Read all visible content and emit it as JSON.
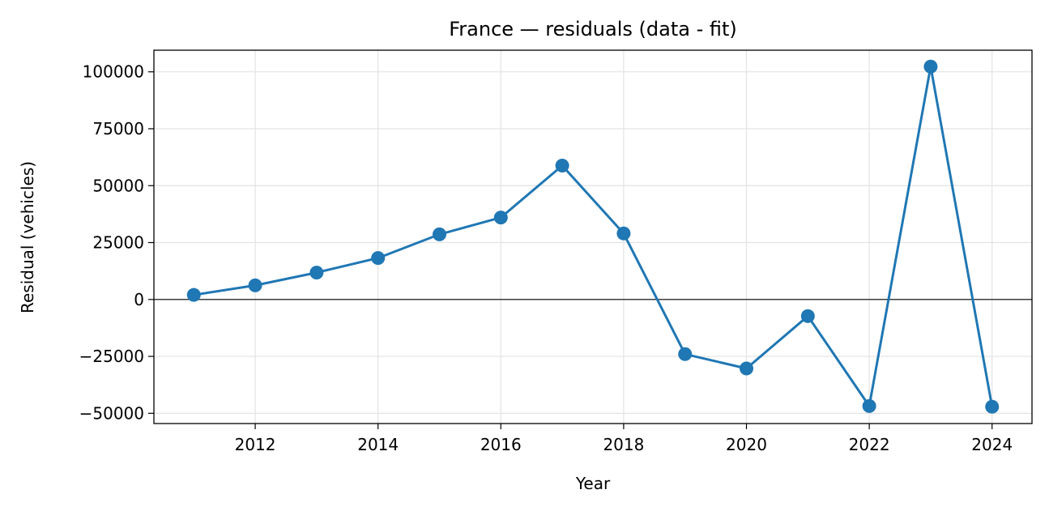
{
  "chart_data": {
    "type": "line",
    "title": "France — residuals (data - fit)",
    "xlabel": "Year",
    "ylabel": "Residual (vehicles)",
    "x": [
      2011,
      2012,
      2013,
      2014,
      2015,
      2016,
      2017,
      2018,
      2019,
      2020,
      2021,
      2022,
      2023,
      2024
    ],
    "series": [
      {
        "values": [
          2000,
          6200,
          11800,
          18200,
          28600,
          36000,
          58800,
          29000,
          -24000,
          -30300,
          -7300,
          -46800,
          102300,
          -47100
        ]
      }
    ],
    "xlim": [
      2010.35,
      2024.65
    ],
    "ylim": [
      -54500,
      109500
    ],
    "xticks": [
      2012,
      2014,
      2016,
      2018,
      2020,
      2022,
      2024
    ],
    "yticks": [
      -50000,
      -25000,
      0,
      25000,
      50000,
      75000,
      100000
    ],
    "zero_line": true,
    "grid": true,
    "legend": "none",
    "colors": {
      "series": "#1f77b4",
      "grid": "#e3e3e3",
      "zero_line": "#000000"
    }
  }
}
